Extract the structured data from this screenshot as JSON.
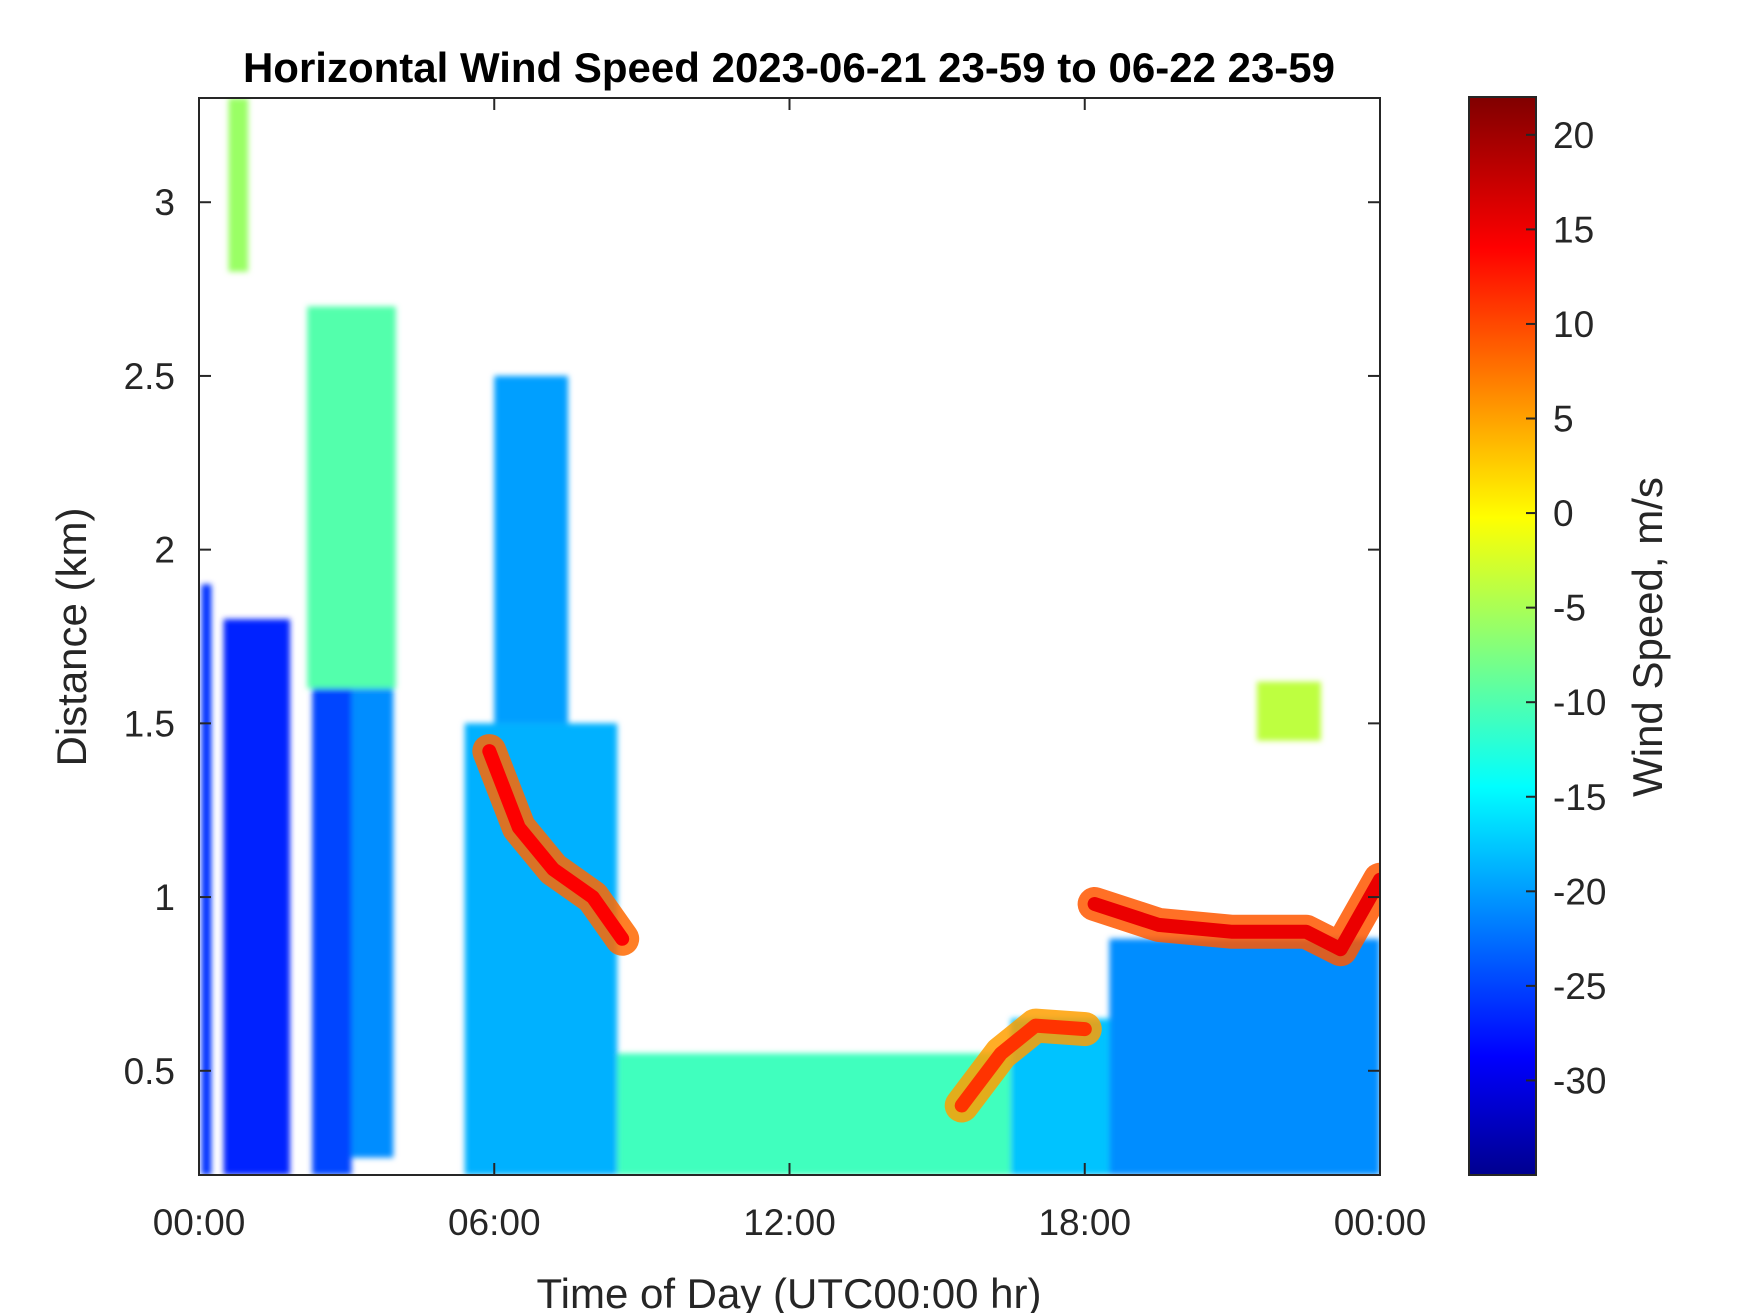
{
  "chart_data": {
    "type": "heatmap",
    "title": "Horizontal Wind Speed 2023-06-21 23-59 to 06-22 23-59",
    "xlabel": "Time of Day (UTC00:00 hr)",
    "ylabel": "Distance (km)",
    "colorbar_label": "Wind Speed, m/s",
    "xlim_hours": [
      0,
      24
    ],
    "ylim_km": [
      0.2,
      3.3
    ],
    "clim_ms": [
      -35,
      22
    ],
    "colormap": "jet",
    "grid": false,
    "x_ticks": [
      {
        "value": 0,
        "label": "00:00"
      },
      {
        "value": 6,
        "label": "06:00"
      },
      {
        "value": 12,
        "label": "12:00"
      },
      {
        "value": 18,
        "label": "18:00"
      },
      {
        "value": 24,
        "label": "00:00"
      }
    ],
    "y_ticks": [
      {
        "value": 0.5,
        "label": "0.5"
      },
      {
        "value": 1,
        "label": "1"
      },
      {
        "value": 1.5,
        "label": "1.5"
      },
      {
        "value": 2,
        "label": "2"
      },
      {
        "value": 2.5,
        "label": "2.5"
      },
      {
        "value": 3,
        "label": "3"
      }
    ],
    "colorbar_ticks": [
      {
        "value": 20,
        "label": "20"
      },
      {
        "value": 15,
        "label": "15"
      },
      {
        "value": 10,
        "label": "10"
      },
      {
        "value": 5,
        "label": "5"
      },
      {
        "value": 0,
        "label": "0"
      },
      {
        "value": -5,
        "label": "-5"
      },
      {
        "value": -10,
        "label": "-10"
      },
      {
        "value": -15,
        "label": "-15"
      },
      {
        "value": -20,
        "label": "-20"
      },
      {
        "value": -25,
        "label": "-25"
      },
      {
        "value": -30,
        "label": "-30"
      }
    ],
    "regions": [
      {
        "name": "early-column-1",
        "t0": 0.05,
        "t1": 0.25,
        "zmin": 0.2,
        "zmax": 1.9,
        "v": -25
      },
      {
        "name": "early-column-2",
        "t0": 0.5,
        "t1": 1.85,
        "zmin": 0.2,
        "zmax": 1.8,
        "v": -26
      },
      {
        "name": "early-column-3",
        "t0": 2.3,
        "t1": 3.1,
        "zmin": 0.2,
        "zmax": 1.7,
        "v": -24
      },
      {
        "name": "early-column-4",
        "t0": 3.1,
        "t1": 3.95,
        "zmin": 0.25,
        "zmax": 1.75,
        "v": -20
      },
      {
        "name": "mid-level-plume",
        "t0": 2.2,
        "t1": 4.0,
        "zmin": 1.6,
        "zmax": 2.7,
        "v": -9
      },
      {
        "name": "upper-speckle",
        "t0": 0.6,
        "t1": 1.0,
        "zmin": 2.8,
        "zmax": 3.3,
        "v": -5
      },
      {
        "name": "morning-block",
        "t0": 5.4,
        "t1": 8.5,
        "zmin": 0.2,
        "zmax": 1.5,
        "v": -18
      },
      {
        "name": "morning-upper",
        "t0": 6.0,
        "t1": 7.5,
        "zmin": 1.5,
        "zmax": 2.5,
        "v": -19
      },
      {
        "name": "daytime-low",
        "t0": 8.5,
        "t1": 16.5,
        "zmin": 0.2,
        "zmax": 0.55,
        "v": -10
      },
      {
        "name": "afternoon-layer",
        "t0": 16.5,
        "t1": 18.5,
        "zmin": 0.2,
        "zmax": 0.65,
        "v": -17
      },
      {
        "name": "evening-block",
        "t0": 18.5,
        "t1": 24.0,
        "zmin": 0.2,
        "zmax": 0.88,
        "v": -20
      },
      {
        "name": "evening-cloud",
        "t0": 21.5,
        "t1": 22.8,
        "zmin": 1.45,
        "zmax": 1.62,
        "v": -3
      }
    ],
    "jets": [
      {
        "name": "morning-jet",
        "points": [
          [
            5.9,
            1.42
          ],
          [
            6.5,
            1.2
          ],
          [
            7.2,
            1.08
          ],
          [
            8.0,
            1.0
          ],
          [
            8.6,
            0.88
          ]
        ],
        "v": 15
      },
      {
        "name": "afternoon-jet",
        "points": [
          [
            15.5,
            0.4
          ],
          [
            16.3,
            0.55
          ],
          [
            17.0,
            0.63
          ],
          [
            18.0,
            0.62
          ]
        ],
        "v": 12
      },
      {
        "name": "evening-jet",
        "points": [
          [
            18.2,
            0.98
          ],
          [
            19.5,
            0.92
          ],
          [
            21.0,
            0.9
          ],
          [
            22.5,
            0.9
          ],
          [
            23.2,
            0.85
          ],
          [
            24.0,
            1.05
          ]
        ],
        "v": 16
      }
    ]
  }
}
